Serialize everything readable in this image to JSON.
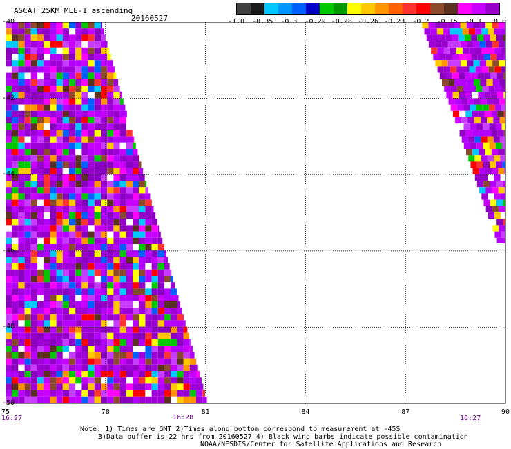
{
  "header": {
    "title": "ASCAT 25KM MLE-1 ascending",
    "date": "20160527"
  },
  "colorbar": {
    "colors": [
      "#404040",
      "#1a1a1a",
      "#00c8ff",
      "#0096ff",
      "#0060ff",
      "#0000c8",
      "#00c800",
      "#009600",
      "#ffff00",
      "#ffc800",
      "#ff9600",
      "#ff6400",
      "#ff3232",
      "#ff0000",
      "#8b4a2b",
      "#5a3020",
      "#ff00ff",
      "#c800ff",
      "#9600c8"
    ],
    "labels": [
      "-1.0",
      "-0.35",
      "-0.3",
      "-0.29",
      "-0.28",
      "-0.26",
      "-0.23",
      "-0.2",
      "-0.15",
      "-0.1",
      "0.0"
    ]
  },
  "map": {
    "lon_labels": [
      "75",
      "78",
      "81",
      "84",
      "87",
      "90"
    ],
    "lon_values": [
      75,
      78,
      81,
      84,
      87,
      90
    ],
    "lat_labels": [
      "-40",
      "-42",
      "-44",
      "-46",
      "-48",
      "-50"
    ],
    "lat_values": [
      -40,
      -42,
      -44,
      -46,
      -48,
      -50
    ],
    "times": [
      "16:27",
      "16:28",
      "16:27"
    ],
    "swaths": [
      {
        "name": "west-swath",
        "top_lat": -40,
        "bottom_lat": -50,
        "left_lon": 75,
        "right_lon_top": 77.9,
        "right_lon_bottom": 81.1
      },
      {
        "name": "east-swath",
        "top_lat": -40,
        "bottom_lat": -45.8,
        "right_lon": 90,
        "left_lon_top": 87.5,
        "left_lon_bottom": 89.8
      }
    ]
  },
  "notes": {
    "line1": "Note: 1) Times are GMT 2)Times along bottom correspond to measurement at -45S",
    "line2": "3)Data buffer is 22 hrs from 20160527 4) Black wind barbs indicate possible contamination",
    "line3": "NOAA/NESDIS/Center for Satellite Applications and Research"
  }
}
